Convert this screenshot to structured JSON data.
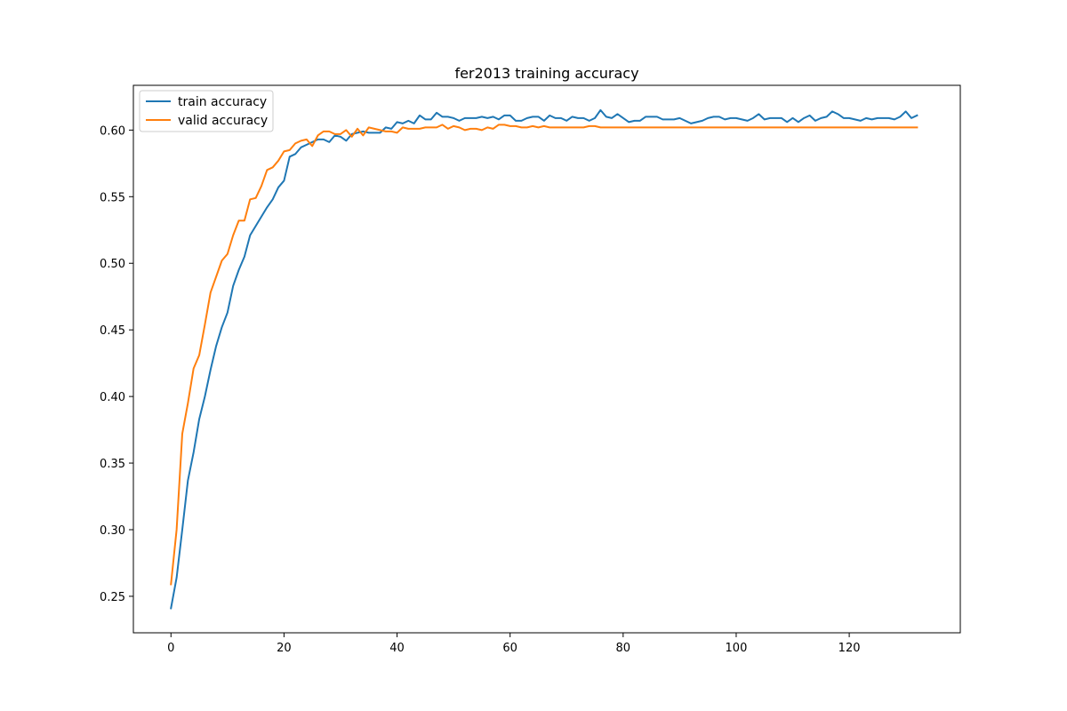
{
  "chart_data": {
    "type": "line",
    "title": "fer2013 training accuracy",
    "xlabel": "",
    "ylabel": "",
    "xlim": [
      -6.65,
      139.65
    ],
    "ylim": [
      0.2226,
      0.6336
    ],
    "xticks": [
      0,
      20,
      40,
      60,
      80,
      100,
      120
    ],
    "yticks": [
      0.25,
      0.3,
      0.35,
      0.4,
      0.45,
      0.5,
      0.55,
      0.6
    ],
    "ytick_labels": [
      "0.25",
      "0.30",
      "0.35",
      "0.40",
      "0.45",
      "0.50",
      "0.55",
      "0.60"
    ],
    "grid": false,
    "legend": "upper-left",
    "series": [
      {
        "name": "train accuracy",
        "color": "#1f77b4",
        "values": [
          0.241,
          0.264,
          0.3,
          0.337,
          0.358,
          0.383,
          0.4,
          0.42,
          0.438,
          0.452,
          0.463,
          0.483,
          0.495,
          0.505,
          0.521,
          0.528,
          0.535,
          0.542,
          0.548,
          0.557,
          0.562,
          0.58,
          0.582,
          0.587,
          0.589,
          0.591,
          0.593,
          0.593,
          0.591,
          0.596,
          0.595,
          0.592,
          0.597,
          0.598,
          0.599,
          0.598,
          0.598,
          0.598,
          0.602,
          0.601,
          0.606,
          0.605,
          0.607,
          0.605,
          0.611,
          0.608,
          0.608,
          0.613,
          0.61,
          0.61,
          0.609,
          0.607,
          0.609,
          0.609,
          0.609,
          0.61,
          0.609,
          0.61,
          0.608,
          0.611,
          0.611,
          0.607,
          0.607,
          0.609,
          0.61,
          0.61,
          0.607,
          0.611,
          0.609,
          0.609,
          0.607,
          0.61,
          0.609,
          0.609,
          0.607,
          0.609,
          0.615,
          0.61,
          0.609,
          0.612,
          0.609,
          0.606,
          0.607,
          0.607,
          0.61,
          0.61,
          0.61,
          0.608,
          0.608,
          0.608,
          0.609,
          0.607,
          0.605,
          0.606,
          0.607,
          0.609,
          0.61,
          0.61,
          0.608,
          0.609,
          0.609,
          0.608,
          0.607,
          0.609,
          0.612,
          0.608,
          0.609,
          0.609,
          0.609,
          0.606,
          0.609,
          0.606,
          0.609,
          0.611,
          0.607,
          0.609,
          0.61,
          0.614,
          0.612,
          0.609,
          0.609,
          0.608,
          0.607,
          0.609,
          0.608,
          0.609,
          0.609,
          0.609,
          0.608,
          0.61,
          0.614,
          0.609,
          0.611
        ]
      },
      {
        "name": "valid accuracy",
        "color": "#ff7f0e",
        "values": [
          0.259,
          0.3,
          0.372,
          0.395,
          0.421,
          0.431,
          0.454,
          0.478,
          0.49,
          0.502,
          0.507,
          0.521,
          0.532,
          0.532,
          0.548,
          0.549,
          0.558,
          0.57,
          0.572,
          0.577,
          0.584,
          0.585,
          0.59,
          0.592,
          0.593,
          0.588,
          0.596,
          0.599,
          0.599,
          0.597,
          0.597,
          0.6,
          0.595,
          0.601,
          0.596,
          0.602,
          0.601,
          0.6,
          0.599,
          0.599,
          0.598,
          0.602,
          0.601,
          0.601,
          0.601,
          0.602,
          0.602,
          0.602,
          0.604,
          0.601,
          0.603,
          0.602,
          0.6,
          0.601,
          0.601,
          0.6,
          0.602,
          0.601,
          0.604,
          0.604,
          0.603,
          0.603,
          0.602,
          0.602,
          0.603,
          0.602,
          0.603,
          0.602,
          0.602,
          0.602,
          0.602,
          0.602,
          0.602,
          0.602,
          0.603,
          0.603,
          0.602,
          0.602,
          0.602,
          0.602,
          0.602,
          0.602,
          0.602,
          0.602,
          0.602,
          0.602,
          0.602,
          0.602,
          0.602,
          0.602,
          0.602,
          0.602,
          0.602,
          0.602,
          0.602,
          0.602,
          0.602,
          0.602,
          0.602,
          0.602,
          0.602,
          0.602,
          0.602,
          0.602,
          0.602,
          0.602,
          0.602,
          0.602,
          0.602,
          0.602,
          0.602,
          0.602,
          0.602,
          0.602,
          0.602,
          0.602,
          0.602,
          0.602,
          0.602,
          0.602,
          0.602,
          0.602,
          0.602,
          0.602,
          0.602,
          0.602,
          0.602,
          0.602,
          0.602,
          0.602,
          0.602,
          0.602,
          0.602
        ]
      }
    ]
  }
}
